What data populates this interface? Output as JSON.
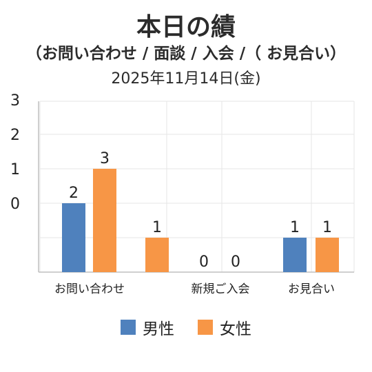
{
  "title": "本日の績",
  "subtitle": "（お問い合わせ / 面談 / 入会 /（ お見合い）",
  "date": "2025年11月14日(金)",
  "colors": {
    "male": "#4f81bd",
    "female": "#f79646",
    "grid": "#e6e6e6",
    "axis": "#bfbfbf"
  },
  "chart_data": {
    "type": "bar",
    "categories": [
      "お問い合わせ",
      "",
      "新規ご入会",
      "",
      "お見合い"
    ],
    "y_tick_labels": [
      "0",
      "1",
      "2",
      "3"
    ],
    "grid": true,
    "legend_position": "bottom",
    "series": [
      {
        "name": "男性",
        "values": [
          2,
          null,
          0,
          null,
          1
        ]
      },
      {
        "name": "女性",
        "values": [
          3,
          1,
          0,
          null,
          1
        ]
      }
    ]
  }
}
